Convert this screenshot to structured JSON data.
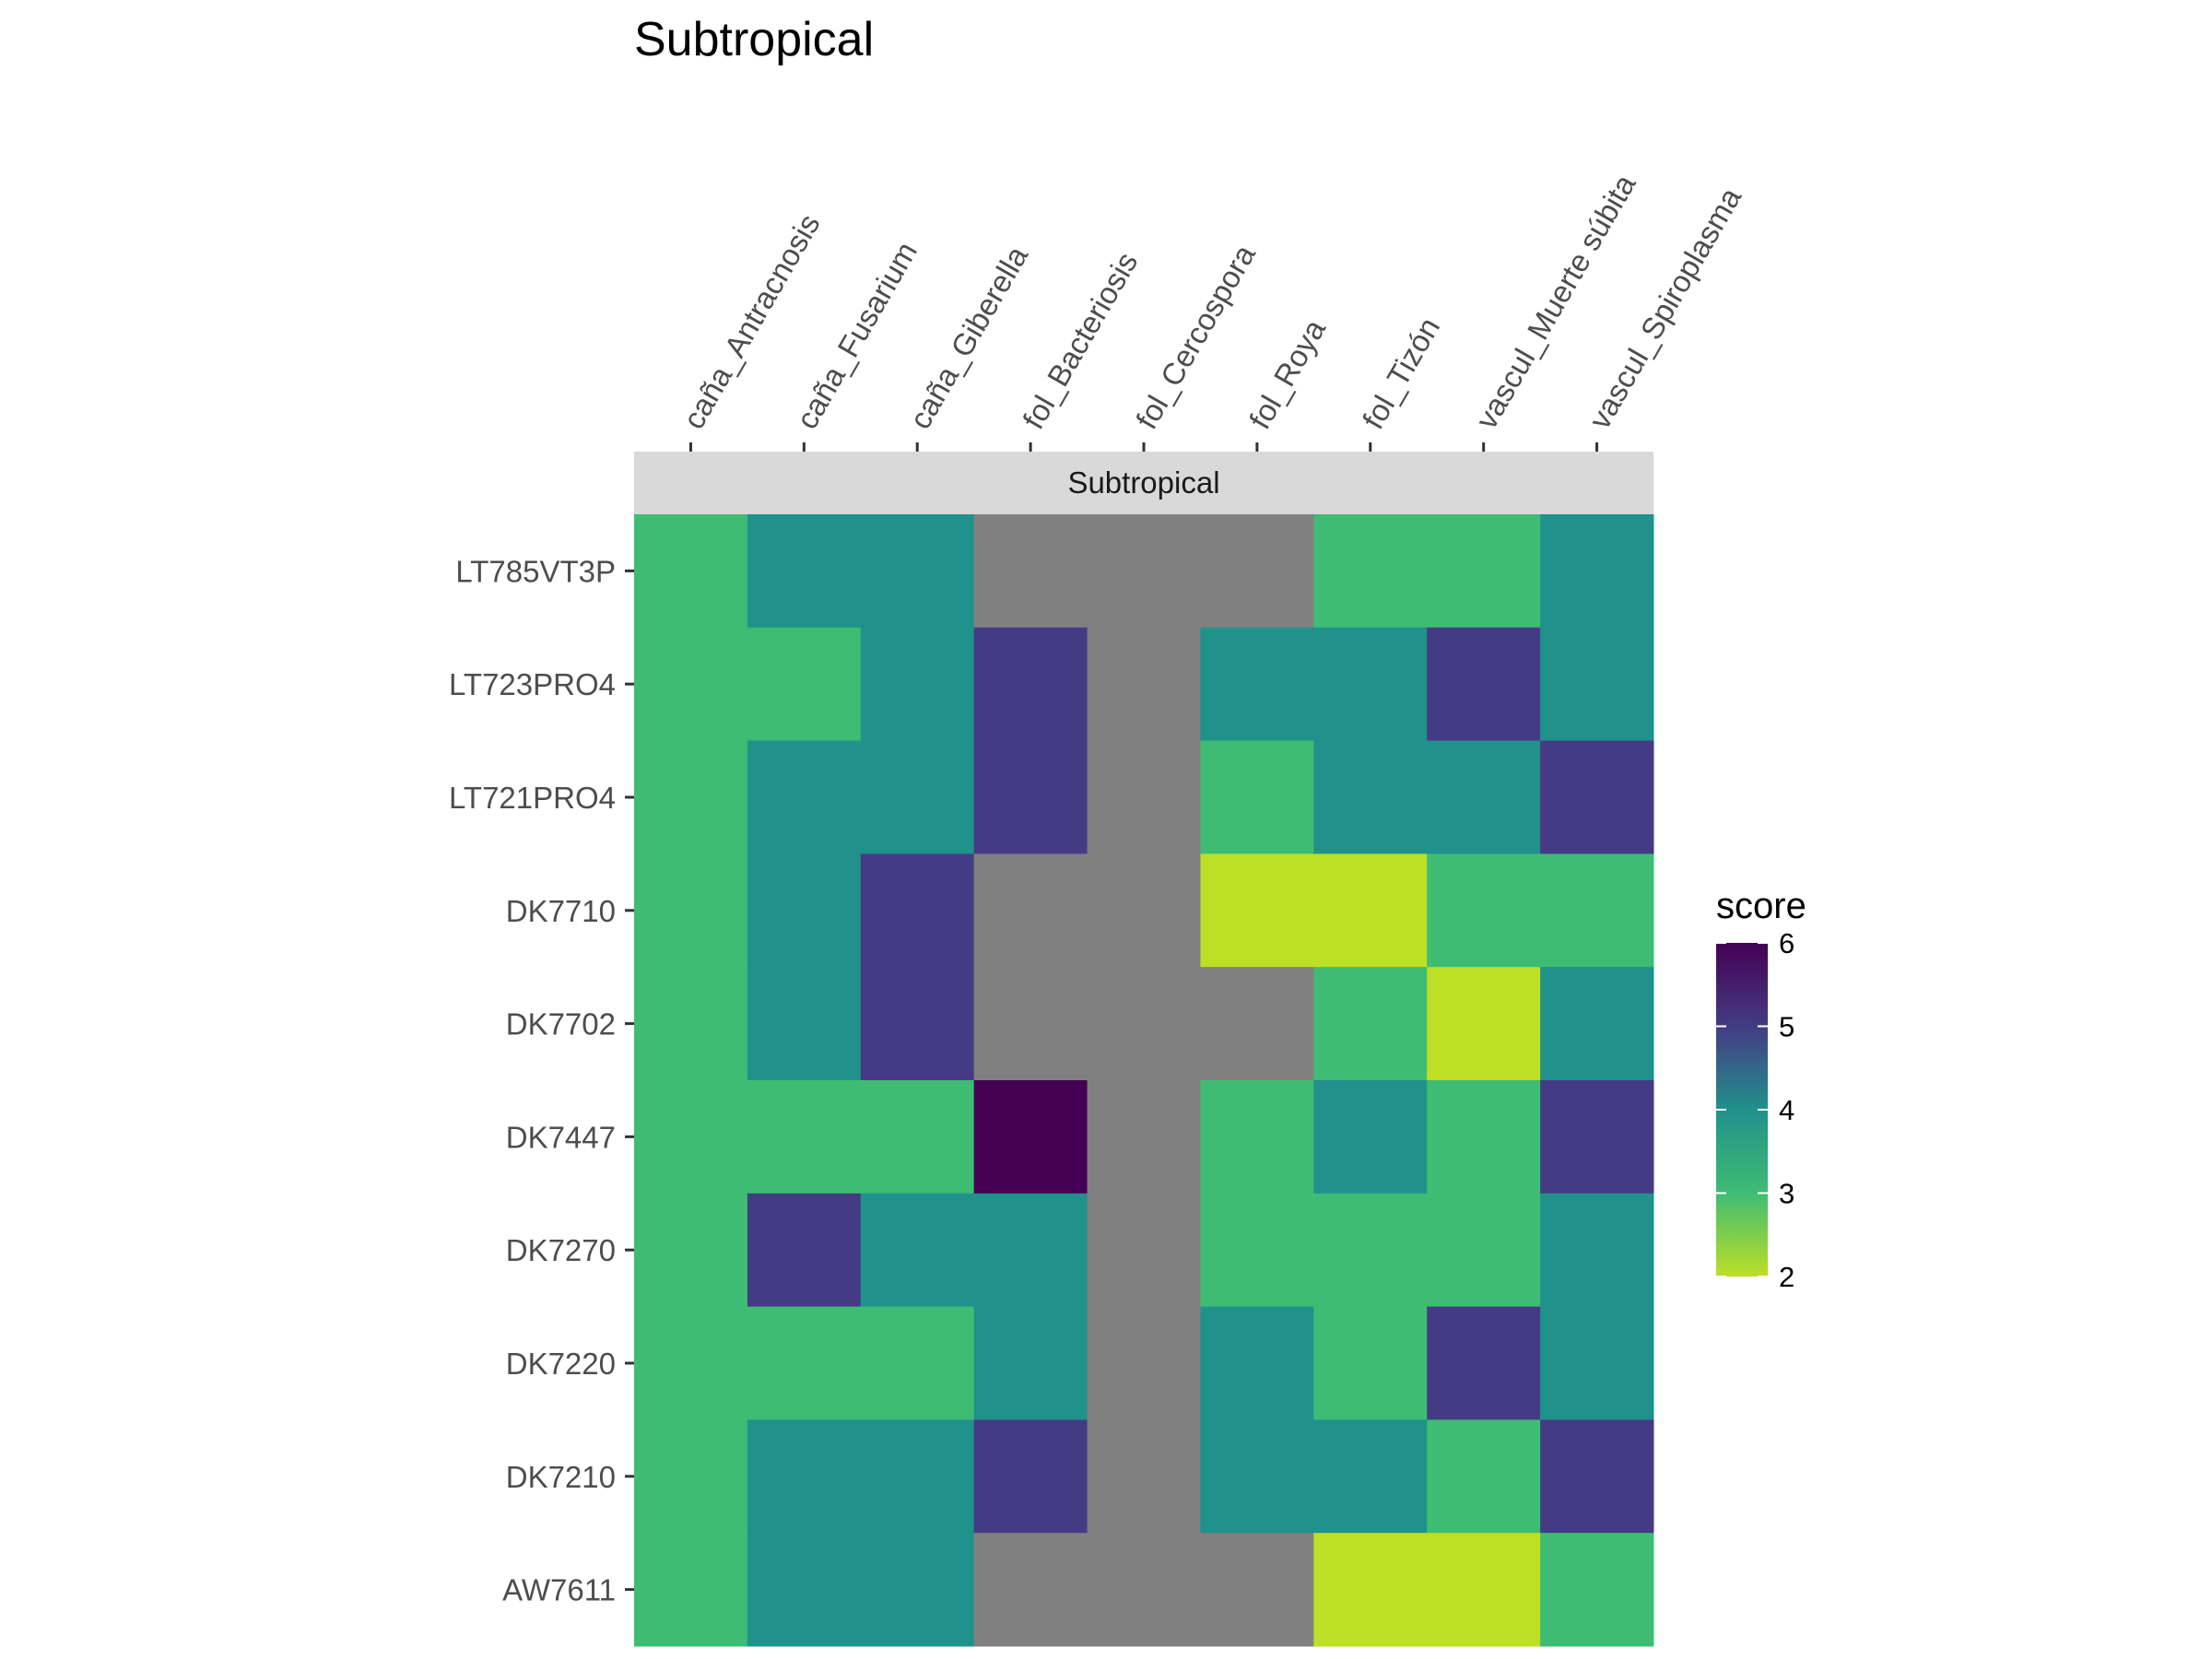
{
  "chart_data": {
    "type": "heatmap",
    "title": "Subtropical",
    "facet_label": "Subtropical",
    "x_categories": [
      "caña_Antracnosis",
      "caña_Fusarium",
      "caña_Giberella",
      "fol_Bacteriosis",
      "fol_Cercospora",
      "fol_Roya",
      "fol_Tizón",
      "vascul_Muerte súbita",
      "vascul_Spiroplasma"
    ],
    "y_categories": [
      "LT785VT3P",
      "LT723PRO4",
      "LT721PRO4",
      "DK7710",
      "DK7702",
      "DK7447",
      "DK7270",
      "DK7220",
      "DK7210",
      "AW7611"
    ],
    "values": [
      [
        3,
        4,
        4,
        null,
        null,
        null,
        3,
        3,
        4
      ],
      [
        3,
        3,
        4,
        5,
        null,
        4,
        4,
        5,
        4
      ],
      [
        3,
        4,
        4,
        5,
        null,
        3,
        4,
        4,
        5
      ],
      [
        3,
        4,
        5,
        null,
        null,
        2,
        2,
        3,
        3
      ],
      [
        3,
        4,
        5,
        null,
        null,
        null,
        3,
        2,
        4
      ],
      [
        3,
        3,
        3,
        6,
        null,
        3,
        4,
        3,
        5
      ],
      [
        3,
        5,
        4,
        4,
        null,
        3,
        3,
        3,
        4
      ],
      [
        3,
        3,
        3,
        4,
        null,
        4,
        3,
        5,
        4
      ],
      [
        3,
        4,
        4,
        5,
        null,
        4,
        4,
        3,
        5
      ],
      [
        3,
        4,
        4,
        null,
        null,
        null,
        2,
        2,
        3
      ]
    ],
    "na_color": "#808080",
    "colorscale": "viridis (reversed: low = yellow, high = purple)",
    "legend": {
      "title": "score",
      "min": 2,
      "max": 6,
      "ticks": [
        2,
        3,
        4,
        5,
        6
      ],
      "position": "right"
    },
    "grid": false
  }
}
